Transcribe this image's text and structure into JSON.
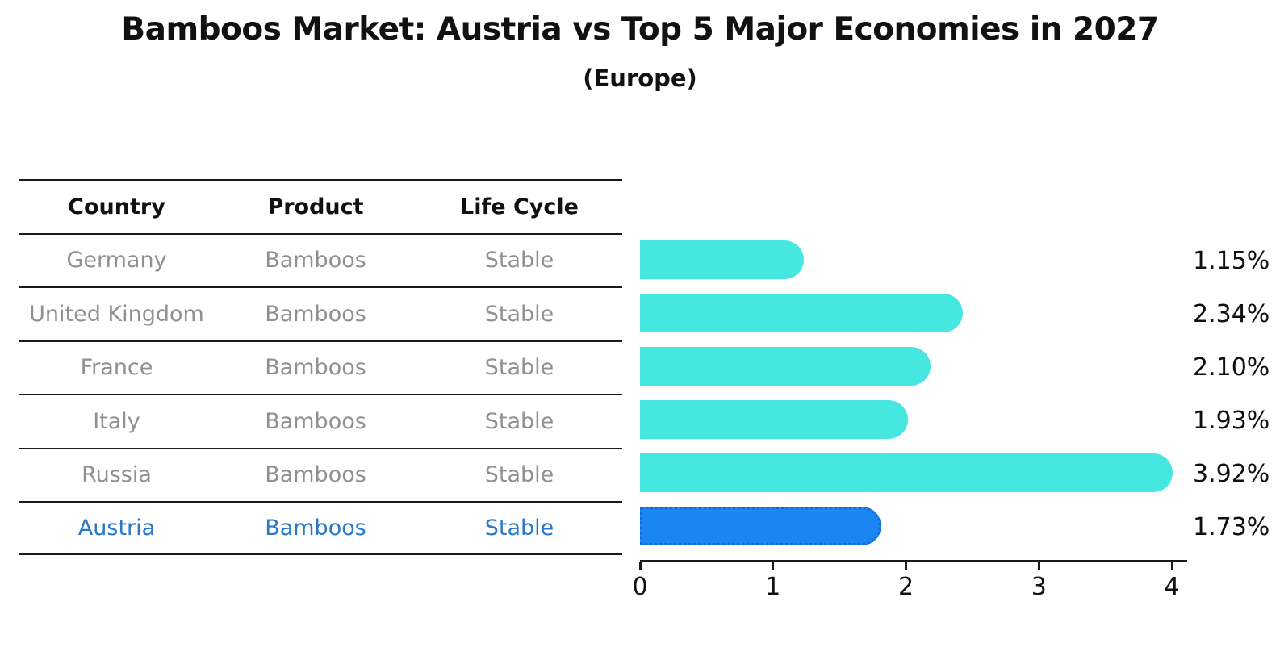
{
  "title": "Bamboos Market: Austria vs Top 5 Major Economies in 2027",
  "subtitle": "(Europe)",
  "table": {
    "headers": [
      "Country",
      "Product",
      "Life Cycle"
    ],
    "rows": [
      {
        "country": "Germany",
        "product": "Bamboos",
        "life_cycle": "Stable",
        "highlighted": false
      },
      {
        "country": "United Kingdom",
        "product": "Bamboos",
        "life_cycle": "Stable",
        "highlighted": false
      },
      {
        "country": "France",
        "product": "Bamboos",
        "life_cycle": "Stable",
        "highlighted": false
      },
      {
        "country": "Italy",
        "product": "Bamboos",
        "life_cycle": "Stable",
        "highlighted": false
      },
      {
        "country": "Russia",
        "product": "Bamboos",
        "life_cycle": "Stable",
        "highlighted": false
      },
      {
        "country": "Austria",
        "product": "Bamboos",
        "life_cycle": "Stable",
        "highlighted": true
      }
    ]
  },
  "chart_data": {
    "type": "bar",
    "orientation": "horizontal",
    "title": "Bamboos Market: Austria vs Top 5 Major Economies in 2027",
    "subtitle": "(Europe)",
    "categories": [
      "Germany",
      "United Kingdom",
      "France",
      "Italy",
      "Russia",
      "Austria"
    ],
    "values": [
      1.15,
      2.34,
      2.1,
      1.93,
      3.92,
      1.73
    ],
    "value_labels": [
      "1.15%",
      "2.34%",
      "2.10%",
      "1.93%",
      "3.92%",
      "1.73%"
    ],
    "x_ticks": [
      "0",
      "1",
      "2",
      "3",
      "4"
    ],
    "xlim": [
      0,
      4.1
    ],
    "grid": false,
    "legend": false,
    "highlight_index": 5,
    "bar_color": "#46E7E0",
    "highlight_bar_color": "#1B86F1",
    "highlight_text_color": "#2878C8",
    "axis_color": "#1A1A1A",
    "table_text_color": "#909090"
  }
}
